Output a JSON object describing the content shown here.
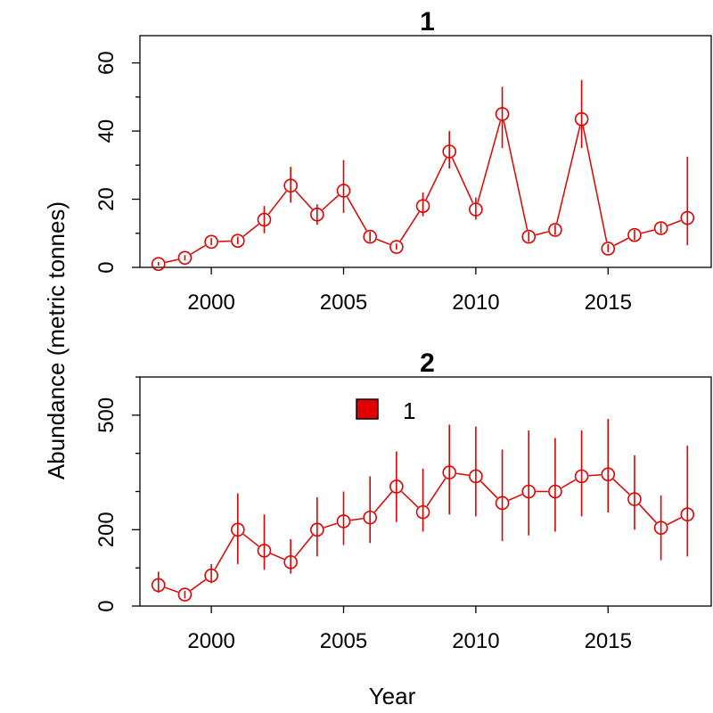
{
  "chart_data": {
    "type": "scatter",
    "xlabel": "Year",
    "ylabel": "Abundance (metric tonnes)",
    "color": "#e00000",
    "legend": {
      "label": "1",
      "placement": "top-center",
      "color": "#e00000"
    },
    "panels": [
      {
        "title": "1",
        "xlim": [
          1997.3,
          2018.9
        ],
        "ylim": [
          0,
          68
        ],
        "xticks": [
          2000,
          2005,
          2010,
          2015
        ],
        "yticks": [
          0,
          20,
          40,
          60
        ],
        "ytick_labels": [
          "0",
          "20",
          "40",
          "60"
        ],
        "minor_yticks": [
          10,
          30,
          50
        ],
        "series": [
          {
            "x": [
              1998,
              1999,
              2000,
              2001,
              2002,
              2003,
              2004,
              2005,
              2006,
              2007,
              2008,
              2009,
              2010,
              2011,
              2012,
              2013,
              2014,
              2015,
              2016,
              2017,
              2018
            ],
            "y": [
              1,
              2.8,
              7.5,
              7.8,
              14,
              24,
              15.5,
              22.5,
              9,
              6,
              18,
              34,
              17,
              45,
              9,
              11,
              43.5,
              5.5,
              9.5,
              11.5,
              14.5
            ],
            "y_low": [
              0.5,
              2.0,
              6.5,
              6.8,
              10,
              19,
              12.5,
              16,
              7.5,
              5.2,
              15,
              29,
              14,
              35,
              7.5,
              9.5,
              35,
              4.5,
              8,
              10,
              6.5
            ],
            "y_high": [
              1.6,
              3.6,
              8.6,
              9.0,
              18,
              29.5,
              18.5,
              31.5,
              10.5,
              7,
              22,
              40,
              20.5,
              53,
              10.5,
              12.5,
              55,
              6.8,
              11,
              13,
              32.5
            ]
          }
        ]
      },
      {
        "title": "2",
        "xlim": [
          1997.3,
          2018.9
        ],
        "ylim": [
          0,
          600
        ],
        "xticks": [
          2000,
          2005,
          2010,
          2015
        ],
        "yticks": [
          0,
          200,
          500
        ],
        "ytick_labels": [
          "0",
          "200",
          "500"
        ],
        "minor_yticks": [
          100,
          300,
          400,
          600
        ],
        "series": [
          {
            "x": [
              1998,
              1999,
              2000,
              2001,
              2002,
              2003,
              2004,
              2005,
              2006,
              2007,
              2008,
              2009,
              2010,
              2011,
              2012,
              2013,
              2014,
              2015,
              2016,
              2017,
              2018
            ],
            "y": [
              55,
              30,
              80,
              200,
              145,
              115,
              200,
              222,
              232,
              313,
              246,
              350,
              340,
              270,
              300,
              300,
              340,
              345,
              280,
              205,
              240
            ],
            "y_low": [
              35,
              20,
              60,
              110,
              95,
              85,
              130,
              160,
              165,
              220,
              195,
              240,
              235,
              170,
              185,
              195,
              235,
              245,
              200,
              120,
              130
            ],
            "y_high": [
              90,
              40,
              110,
              295,
              240,
              175,
              285,
              300,
              340,
              405,
              360,
              475,
              470,
              410,
              460,
              440,
              460,
              490,
              395,
              290,
              420
            ]
          }
        ]
      }
    ]
  }
}
